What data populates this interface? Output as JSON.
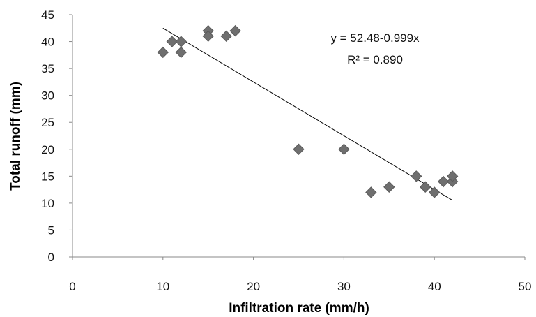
{
  "chart_data": {
    "type": "scatter",
    "title": "",
    "xlabel": "Infiltration rate (mm/h)",
    "ylabel": "Total runoff (mm)",
    "xlim": [
      0,
      50
    ],
    "ylim": [
      0,
      45
    ],
    "xticks": [
      0,
      10,
      20,
      30,
      40,
      50
    ],
    "yticks": [
      0,
      5,
      10,
      15,
      20,
      25,
      30,
      35,
      40,
      45
    ],
    "grid": false,
    "legend": "none",
    "marker": "diamond",
    "marker_color": "#6f6f6f",
    "points": [
      {
        "x": 10,
        "y": 38
      },
      {
        "x": 11,
        "y": 40
      },
      {
        "x": 12,
        "y": 40
      },
      {
        "x": 12,
        "y": 38
      },
      {
        "x": 15,
        "y": 42
      },
      {
        "x": 15,
        "y": 41
      },
      {
        "x": 17,
        "y": 41
      },
      {
        "x": 18,
        "y": 42
      },
      {
        "x": 25,
        "y": 20
      },
      {
        "x": 30,
        "y": 20
      },
      {
        "x": 33,
        "y": 12
      },
      {
        "x": 35,
        "y": 13
      },
      {
        "x": 38,
        "y": 15
      },
      {
        "x": 39,
        "y": 13
      },
      {
        "x": 40,
        "y": 12
      },
      {
        "x": 41,
        "y": 14
      },
      {
        "x": 42,
        "y": 14
      },
      {
        "x": 42,
        "y": 15
      }
    ],
    "trendline": {
      "type": "linear",
      "intercept": 52.48,
      "slope": -0.999,
      "x_range": [
        10,
        42
      ],
      "equation_label": "y = 52.48-0.999x",
      "r2_label": "R² = 0.890"
    }
  }
}
